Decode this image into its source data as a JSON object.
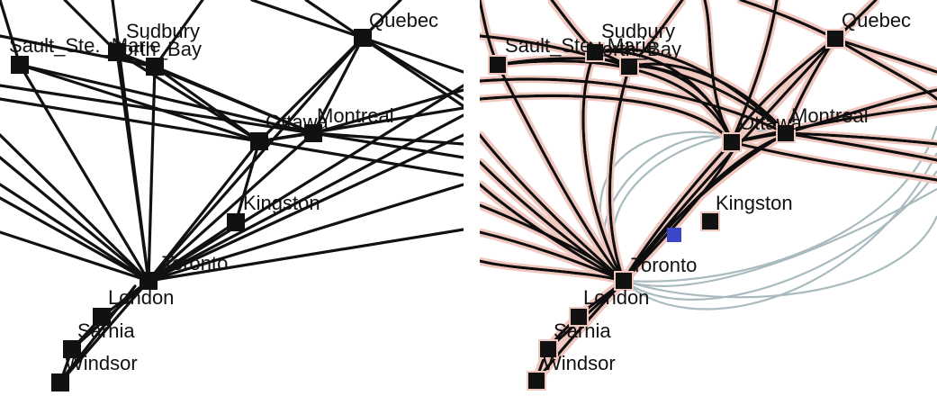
{
  "colors": {
    "edge": "#111111",
    "node": "#111111",
    "bundle_edge": "#9fb3b8",
    "highlight_node": "#3b46c8",
    "halo": "#f0c8c0",
    "background": "#ffffff"
  },
  "nodes": [
    {
      "id": "sault",
      "label": "Sault_Ste._Marie"
    },
    {
      "id": "sudbury",
      "label": "Sudbury"
    },
    {
      "id": "northbay",
      "label": "North_Bay"
    },
    {
      "id": "quebec",
      "label": "Quebec"
    },
    {
      "id": "ottawa",
      "label": "Ottawa"
    },
    {
      "id": "montreal",
      "label": "Montreal"
    },
    {
      "id": "kingston",
      "label": "Kingston"
    },
    {
      "id": "toronto",
      "label": "Toronto"
    },
    {
      "id": "london",
      "label": "London"
    },
    {
      "id": "sarnia",
      "label": "Sarnia"
    },
    {
      "id": "windsor",
      "label": "Windsor"
    }
  ],
  "left_panel": {
    "labels": {
      "sault": "Sault_Ste._Marie",
      "sudbury": "Sudbury",
      "northbay": "North_Bay",
      "quebec": "Quebec",
      "ottawa": "Ottawa",
      "montreal": "Montreal",
      "kingston": "Kingston",
      "toronto": "Toronto",
      "london": "London",
      "sarnia": "Sarnia",
      "windsor": "Windsor"
    }
  },
  "right_panel": {
    "labels": {
      "sault": "Sault_Ste._Marie",
      "sudbury": "Sudbury",
      "northbay": "North_Bay",
      "quebec": "Quebec",
      "ottawa": "Ottawa",
      "montreal": "Montreal",
      "kingston": "Kingston",
      "toronto": "Toronto",
      "london": "London",
      "sarnia": "Sarnia",
      "windsor": "Windsor"
    }
  }
}
